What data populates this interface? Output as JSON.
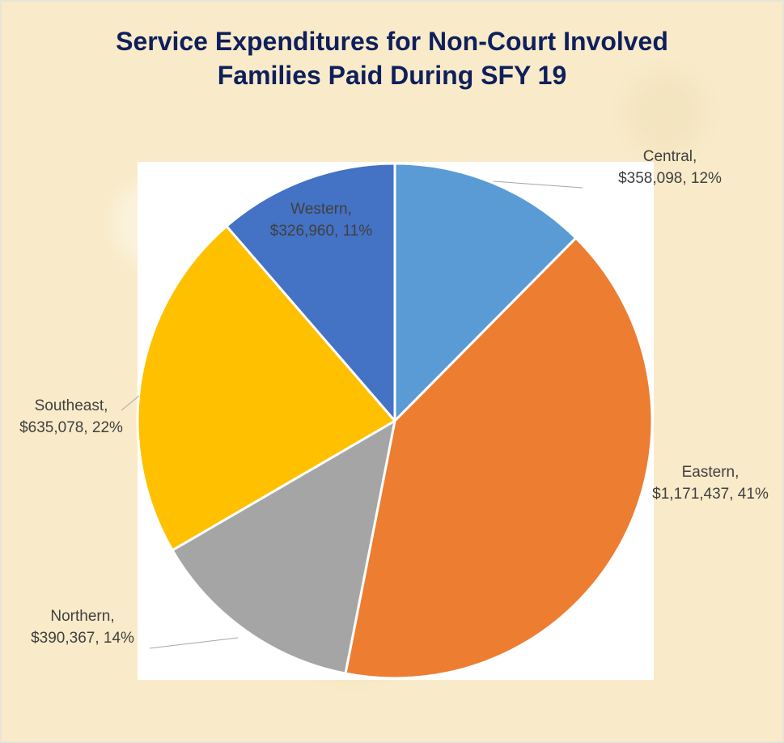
{
  "chart_data": {
    "type": "pie",
    "title_lines": [
      "Service Expenditures for Non-Court Involved",
      "Families Paid During SFY 19"
    ],
    "slices": [
      {
        "label": "Central",
        "value": 358098,
        "value_text": "$358,098",
        "percent_text": "12%",
        "color": "#5b9bd5"
      },
      {
        "label": "Eastern",
        "value": 1171437,
        "value_text": "$1,171,437",
        "percent_text": "41%",
        "color": "#ed7d31"
      },
      {
        "label": "Northern",
        "value": 390367,
        "value_text": "$390,367",
        "percent_text": "14%",
        "color": "#a5a5a5"
      },
      {
        "label": "Southeast",
        "value": 635078,
        "value_text": "$635,078",
        "percent_text": "22%",
        "color": "#ffc000"
      },
      {
        "label": "Western",
        "value": 326960,
        "value_text": "$326,960",
        "percent_text": "11%",
        "color": "#4472c4"
      }
    ],
    "start_angle": "12 o'clock",
    "direction": "clockwise",
    "legend": "none"
  },
  "colors": {
    "title": "#0f1f5c",
    "background": "#f9ebc9",
    "plot_area": "#ffffff",
    "label_text": "#404040"
  }
}
